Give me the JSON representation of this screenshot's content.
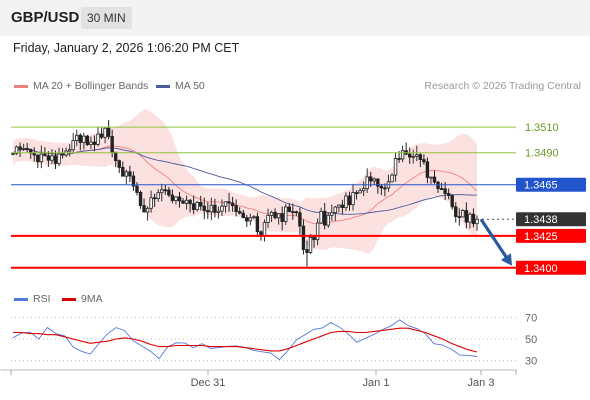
{
  "header": {
    "pair": "GBP/USD",
    "timeframe": "30 MIN"
  },
  "timestamp": "Friday, January 2, 2026 1:06:20 PM CET",
  "legend": {
    "ma_label": "MA 20 + Bollinger Bands",
    "ma50_label": "MA 50",
    "rsi_label": "RSI",
    "rsi_ma_label": "9MA"
  },
  "credit": "Research © 2026 Trading Central",
  "colors": {
    "resistance": "#8dc63f",
    "support": "#ff0000",
    "pivot": "#2255cc",
    "bands": "#fcdcdc",
    "ma20": "#f08080",
    "ma50": "#4a5a9a",
    "rsi": "#5577dd",
    "rsi_ma": "#dd0000",
    "forecast": "#2a5aa0",
    "price_label": "#333333"
  },
  "chart_data": [
    {
      "type": "candlestick",
      "title": "",
      "x_ticks": [
        "Dec 31",
        "Jan 1",
        "Jan 3"
      ],
      "ylim": [
        1.3392,
        1.3525
      ],
      "levels": [
        {
          "value": "1.3510",
          "kind": "resistance"
        },
        {
          "value": "1.3490",
          "kind": "resistance"
        },
        {
          "value": "1.3465",
          "kind": "pivot"
        },
        {
          "value": "1.3438",
          "kind": "price"
        },
        {
          "value": "1.3425",
          "kind": "support"
        },
        {
          "value": "1.3400",
          "kind": "support"
        }
      ],
      "price_path": [
        1.3486,
        1.3492,
        1.3497,
        1.349,
        1.3482,
        1.3486,
        1.3489,
        1.3495,
        1.3498,
        1.3503,
        1.3497,
        1.3505,
        1.3507,
        1.3493,
        1.3478,
        1.347,
        1.3455,
        1.3448,
        1.3452,
        1.3458,
        1.3455,
        1.345,
        1.3449,
        1.3447,
        1.345,
        1.3448,
        1.3446,
        1.3447,
        1.3445,
        1.3444,
        1.3443,
        1.3438,
        1.343,
        1.3444,
        1.3435,
        1.344,
        1.345,
        1.343,
        1.341,
        1.3428,
        1.344,
        1.3436,
        1.3445,
        1.3452,
        1.3458,
        1.3462,
        1.347,
        1.3468,
        1.3466,
        1.3478,
        1.3485,
        1.349,
        1.3487,
        1.3484,
        1.347,
        1.346,
        1.3462,
        1.3448,
        1.344,
        1.3437,
        1.3438
      ],
      "forecast_target": 1.34
    },
    {
      "type": "line",
      "title": "RSI",
      "ylim": [
        25,
        75
      ],
      "y_ticks": [
        "70",
        "50",
        "30"
      ],
      "series": [
        {
          "name": "RSI",
          "values": [
            52,
            58,
            55,
            50,
            60,
            57,
            54,
            45,
            40,
            38,
            45,
            55,
            60,
            58,
            50,
            45,
            38,
            32,
            42,
            48,
            46,
            44,
            45,
            43,
            41,
            42,
            44,
            43,
            40,
            36,
            35,
            32,
            40,
            50,
            54,
            58,
            61,
            63,
            60,
            54,
            48,
            51,
            56,
            61,
            64,
            66,
            63,
            59,
            54,
            48,
            44,
            41,
            37,
            35,
            33
          ]
        },
        {
          "name": "9MA",
          "values": [
            56,
            56,
            55,
            55,
            54,
            54,
            52,
            50,
            48,
            46,
            47,
            48,
            50,
            51,
            50,
            48,
            45,
            43,
            43,
            44,
            44,
            44,
            44,
            43,
            43,
            43,
            43,
            42,
            41,
            40,
            39,
            39,
            41,
            44,
            47,
            50,
            53,
            56,
            57,
            57,
            56,
            56,
            57,
            58,
            59,
            60,
            60,
            58,
            56,
            53,
            50,
            46,
            43,
            40,
            38
          ]
        }
      ]
    }
  ]
}
